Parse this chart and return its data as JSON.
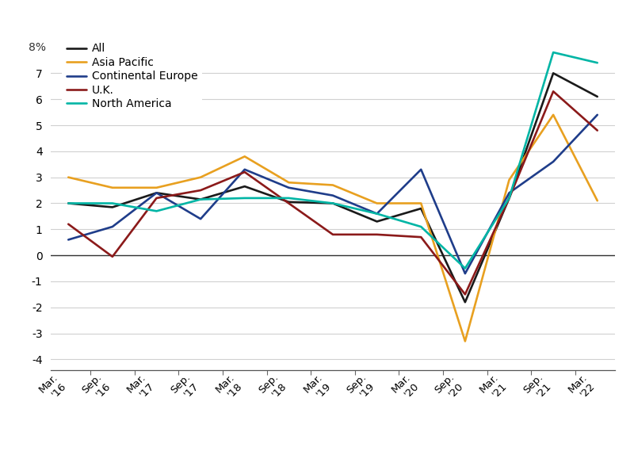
{
  "x_labels": [
    "Mar.\n'16",
    "Sep.\n'16",
    "Mar.\n'17",
    "Sep.\n'17",
    "Mar.\n'18",
    "Sep.\n'18",
    "Mar.\n'19",
    "Sep.\n'19",
    "Mar.\n'20",
    "Sep.\n'20",
    "Mar.\n'21",
    "Sep.\n'21",
    "Mar.\n'22"
  ],
  "series": [
    {
      "name": "All",
      "color": "#1a1a1a",
      "values": [
        2.0,
        1.85,
        2.4,
        2.15,
        2.65,
        2.05,
        2.0,
        1.3,
        1.8,
        -1.8,
        2.2,
        7.0,
        6.1
      ]
    },
    {
      "name": "Asia Pacific",
      "color": "#e8a020",
      "values": [
        3.0,
        2.6,
        2.6,
        3.0,
        3.8,
        2.8,
        2.7,
        2.0,
        2.0,
        -3.3,
        2.9,
        5.4,
        2.1
      ]
    },
    {
      "name": "Continental Europe",
      "color": "#1f3d8a",
      "values": [
        0.6,
        1.1,
        2.4,
        1.4,
        3.3,
        2.6,
        2.3,
        1.6,
        3.3,
        -0.7,
        2.4,
        3.6,
        5.4
      ]
    },
    {
      "name": "U.K.",
      "color": "#8b1a1a",
      "values": [
        1.2,
        -0.05,
        2.2,
        2.5,
        3.2,
        2.0,
        0.8,
        0.8,
        0.7,
        -1.5,
        2.2,
        6.3,
        4.8
      ]
    },
    {
      "name": "North America",
      "color": "#00b5a5",
      "values": [
        2.0,
        2.0,
        1.7,
        2.15,
        2.2,
        2.2,
        2.0,
        1.6,
        1.1,
        -0.5,
        2.2,
        7.8,
        7.4
      ]
    }
  ],
  "ylim": [
    -4.4,
    8.6
  ],
  "yticks": [
    -4,
    -3,
    -2,
    -1,
    0,
    1,
    2,
    3,
    4,
    5,
    6,
    7
  ],
  "y8_label": "8%",
  "background_color": "#ffffff",
  "grid_color": "#d0d0d0",
  "linewidth": 1.9
}
